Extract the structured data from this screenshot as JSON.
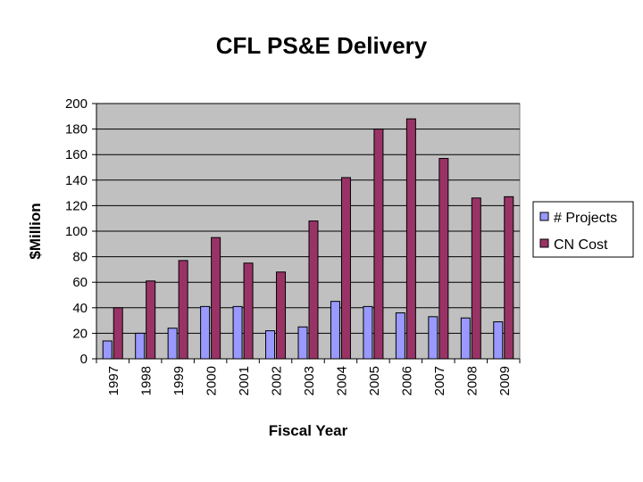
{
  "chart_data": {
    "type": "bar",
    "title": "CFL PS&E Delivery",
    "xlabel": "Fiscal Year",
    "ylabel": "$Million",
    "ylim": [
      0,
      200
    ],
    "yticks": [
      0,
      20,
      40,
      60,
      80,
      100,
      120,
      140,
      160,
      180,
      200
    ],
    "grid": true,
    "legend": "right",
    "categories": [
      "1997",
      "1998",
      "1999",
      "2000",
      "2001",
      "2002",
      "2003",
      "2004",
      "2005",
      "2006",
      "2007",
      "2008",
      "2009"
    ],
    "series": [
      {
        "name": "# Projects",
        "color": "#9999ff",
        "values": [
          14,
          20,
          24,
          41,
          41,
          22,
          25,
          45,
          41,
          36,
          33,
          32,
          29
        ]
      },
      {
        "name": "CN Cost",
        "color": "#993366",
        "values": [
          40,
          61,
          77,
          95,
          75,
          68,
          108,
          142,
          180,
          188,
          157,
          126,
          127
        ]
      }
    ],
    "plot_background": "#c0c0c0",
    "gridline_color": "#000000"
  }
}
